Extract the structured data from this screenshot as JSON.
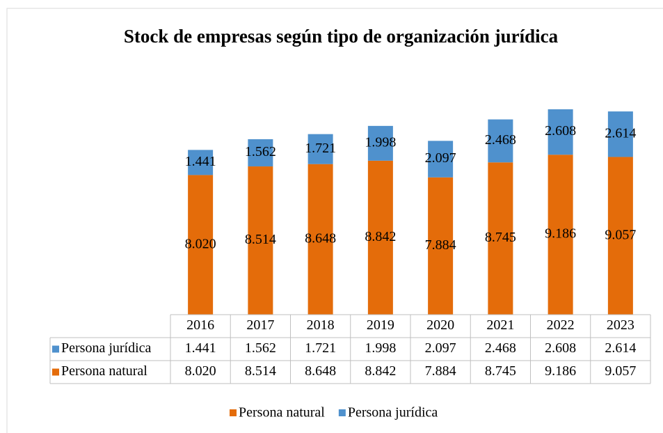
{
  "chart_data": {
    "type": "stacked_bar",
    "title": "Stock de empresas según tipo de organización jurídica",
    "categories": [
      "2016",
      "2017",
      "2018",
      "2019",
      "2020",
      "2021",
      "2022",
      "2023"
    ],
    "series": [
      {
        "name": "Persona natural",
        "color": "#e46c0a",
        "values": [
          8020,
          8514,
          8648,
          8842,
          7884,
          8745,
          9186,
          9057
        ],
        "value_labels": [
          "8.020",
          "8.514",
          "8.648",
          "8.842",
          "7.884",
          "8.745",
          "9.186",
          "9.057"
        ]
      },
      {
        "name": "Persona jurídica",
        "color": "#4f91cd",
        "values": [
          1441,
          1562,
          1721,
          1998,
          2097,
          2468,
          2608,
          2614
        ],
        "value_labels": [
          "1.441",
          "1.562",
          "1.721",
          "1.998",
          "2.097",
          "2.468",
          "2.608",
          "2.614"
        ]
      }
    ]
  }
}
